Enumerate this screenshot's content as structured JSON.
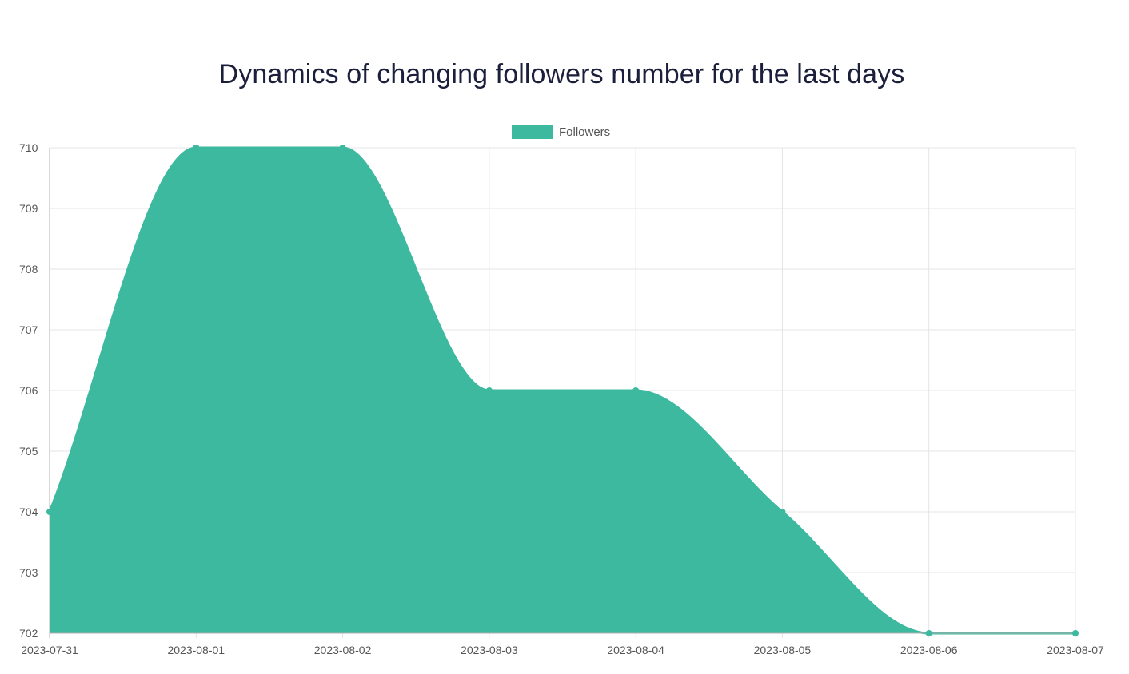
{
  "chart_data": {
    "type": "area",
    "title": "Dynamics of changing followers number for the last days",
    "xlabel": "",
    "ylabel": "",
    "categories": [
      "2023-07-31",
      "2023-08-01",
      "2023-08-02",
      "2023-08-03",
      "2023-08-04",
      "2023-08-05",
      "2023-08-06",
      "2023-08-07"
    ],
    "series": [
      {
        "name": "Followers",
        "values": [
          704,
          710,
          710,
          706,
          706,
          704,
          702,
          702
        ],
        "color": "#3cb99e"
      }
    ],
    "ylim": [
      702,
      710
    ],
    "yticks": [
      702,
      703,
      704,
      705,
      706,
      707,
      708,
      709,
      710
    ],
    "grid": true,
    "legend_position": "top-center",
    "smooth": true
  }
}
